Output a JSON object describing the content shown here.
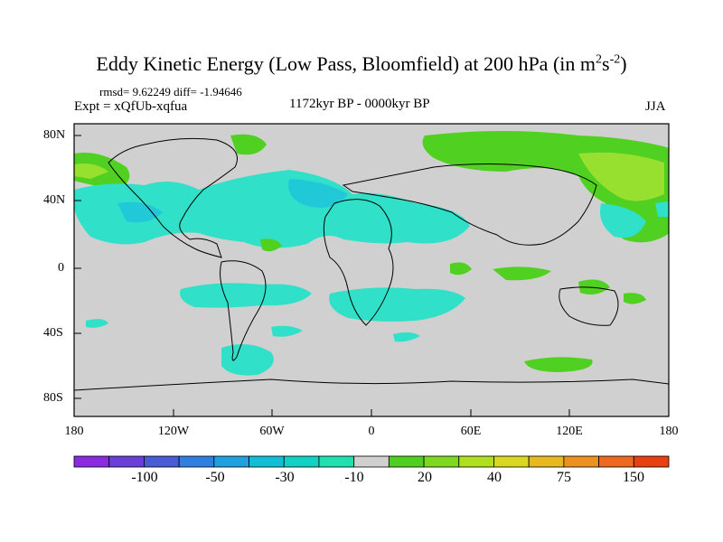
{
  "title": {
    "main": "Eddy Kinetic Energy (Low Pass, Bloomfield) at 200 hPa (in m",
    "sup1": "2",
    "mid": "s",
    "sup2": "-2",
    "end": ")"
  },
  "stats": "rmsd= 9.62249  diff= -1.94646",
  "expt": "Expt = xQfUb-xqfua",
  "period": "1172kyr BP - 0000kyr BP",
  "season": "JJA",
  "lat_labels": [
    "80N",
    "40N",
    "0",
    "40S",
    "80S"
  ],
  "lon_labels": [
    "180",
    "120W",
    "60W",
    "0",
    "60E",
    "120E",
    "180"
  ],
  "colorbar": {
    "labels": [
      "-100",
      "-50",
      "-30",
      "-10",
      "20",
      "40",
      "75",
      "150"
    ],
    "colors": [
      "#8a2be2",
      "#6a3fd8",
      "#4a5bd6",
      "#2f7fe0",
      "#1fa0e0",
      "#12bed6",
      "#10d2c4",
      "#20e0b0",
      "#d0d0d0",
      "#4fd020",
      "#7fd820",
      "#aee020",
      "#d8d820",
      "#e8b820",
      "#ee9020",
      "#ee6820",
      "#e84010"
    ]
  },
  "map": {
    "background_color": "#d0d0d0",
    "teal_color": "#30e0c8",
    "cyan_color": "#20c8d8",
    "green_color": "#50d020",
    "lime_color": "#98e030"
  }
}
